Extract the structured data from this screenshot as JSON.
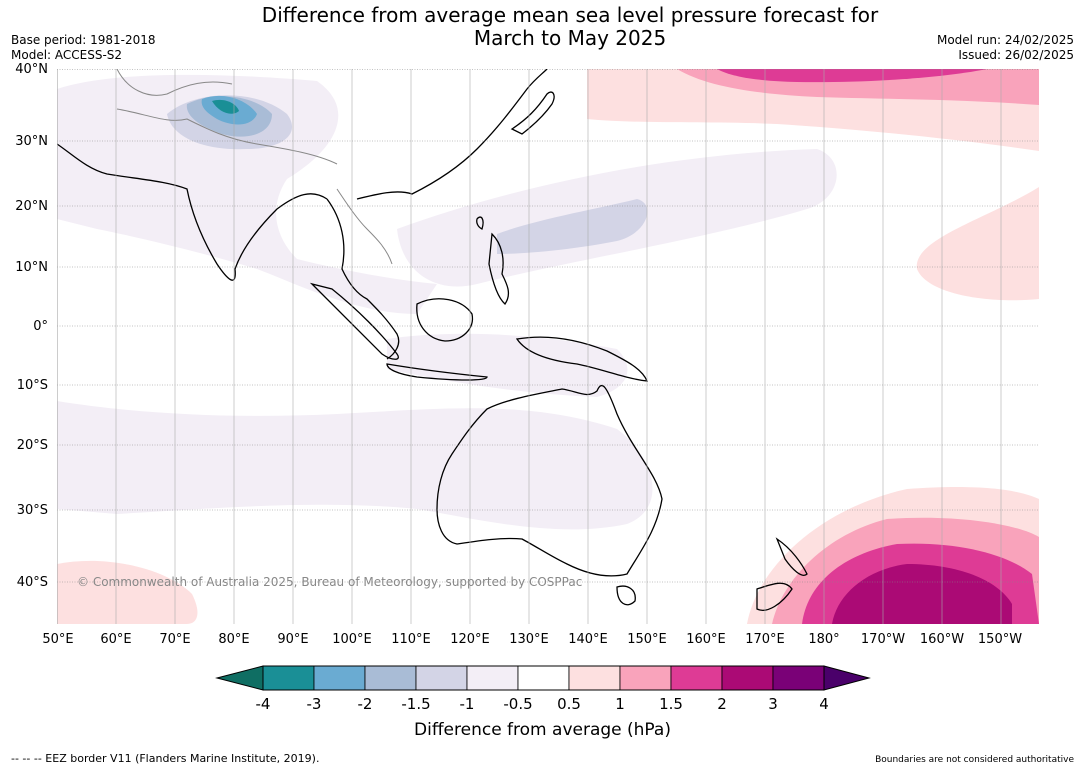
{
  "title_line1": "Difference from average mean sea level pressure forecast for",
  "title_line2": "March to May 2025",
  "base_period": "Base period: 1981-2018",
  "model": "Model: ACCESS-S2",
  "model_run": "Model run: 24/02/2025",
  "issued": "Issued: 26/02/2025",
  "copyright": "© Commonwealth of Australia 2025, Bureau of Meteorology, supported by COSPPac",
  "lat_labels": [
    "40°N",
    "30°N",
    "20°N",
    "10°N",
    "0°",
    "10°S",
    "20°S",
    "30°S",
    "40°S"
  ],
  "lon_labels": [
    "50°E",
    "60°E",
    "70°E",
    "80°E",
    "90°E",
    "100°E",
    "110°E",
    "120°E",
    "130°E",
    "140°E",
    "150°E",
    "160°E",
    "170°E",
    "180°",
    "170°W",
    "160°W",
    "150°W"
  ],
  "colorbar": {
    "ticks": [
      "-4",
      "-3",
      "-2",
      "-1.5",
      "-1",
      "-0.5",
      "0.5",
      "1",
      "1.5",
      "2",
      "3",
      "4"
    ],
    "colors": [
      "#1a8f96",
      "#6aabd2",
      "#a9bcd6",
      "#d3d4e6",
      "#f3eef6",
      "#ffffff",
      "#fde0e0",
      "#f9a3bb",
      "#de3b95",
      "#ab0a75",
      "#7a0177"
    ],
    "under_color": "#0f6e63",
    "over_color": "#4a006a",
    "label": "Difference from average (hPa)"
  },
  "footer_left": "--  --  -- EEZ border V11 (Flanders Marine Institute, 2019).",
  "footer_right": "Boundaries are not considered authoritative"
}
